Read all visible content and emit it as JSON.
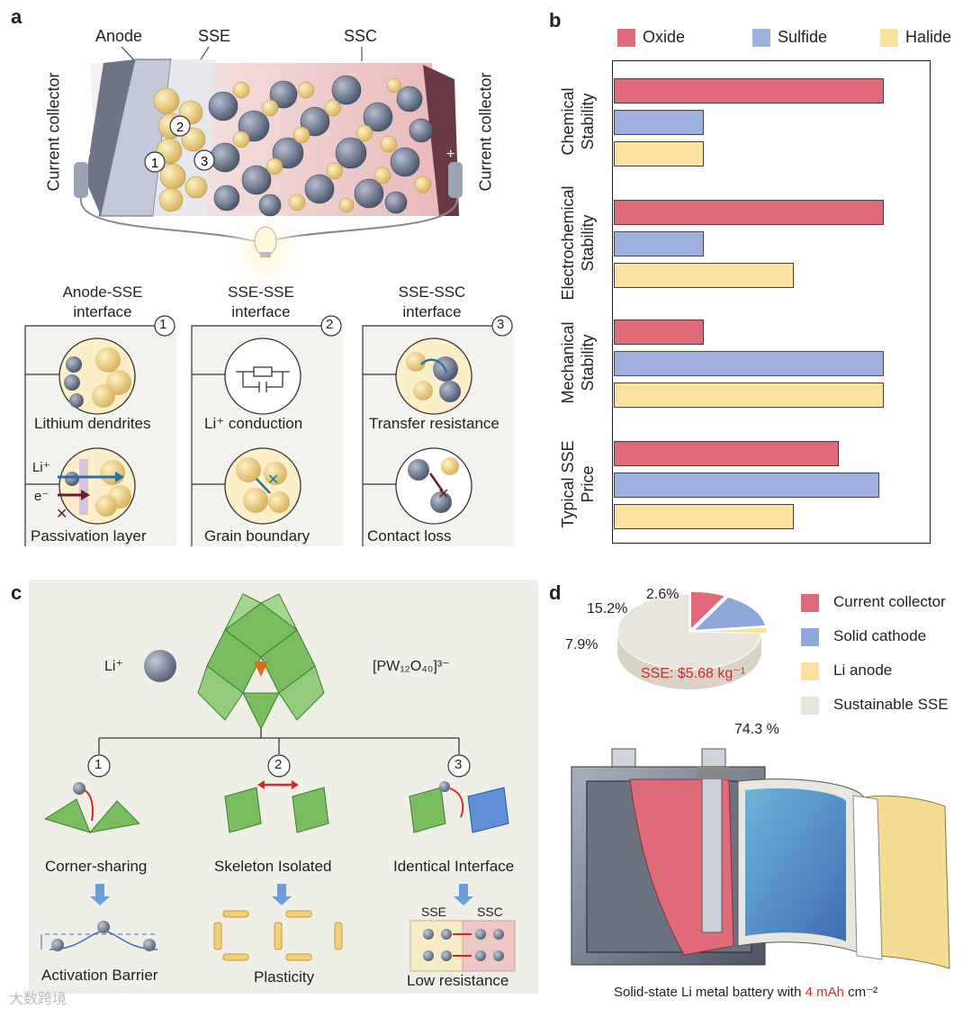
{
  "panel_a": {
    "letter": "a",
    "labels": {
      "anode": "Anode",
      "sse": "SSE",
      "ssc": "SSC",
      "cc_left": "Current collector",
      "cc_right": "Current collector",
      "minus": "−",
      "plus": "+"
    },
    "markers": [
      "1",
      "2",
      "3"
    ],
    "interfaces": [
      {
        "num": "1",
        "title_l1": "Anode-SSE",
        "title_l2": "interface",
        "top": "Lithium dendrites",
        "bottom": "Passivation layer",
        "li": "Li⁺",
        "e": "e⁻"
      },
      {
        "num": "2",
        "title_l1": "SSE-SSE",
        "title_l2": "interface",
        "top": "Li⁺ conduction",
        "bottom": "Grain boundary"
      },
      {
        "num": "3",
        "title_l1": "SSE-SSC",
        "title_l2": "interface",
        "top": "Transfer resistance",
        "bottom": "Contact loss"
      }
    ]
  },
  "panel_b": {
    "letter": "b"
  },
  "chart_data": {
    "type": "bar",
    "orientation": "horizontal",
    "legend_position": "top",
    "categories": [
      "Chemical Stability",
      "Electrochemical Stability",
      "Mechanical Stability",
      "Typical SSE Price"
    ],
    "category_lines": [
      [
        "Chemical",
        "Stability"
      ],
      [
        "Electrochemical",
        "Stability"
      ],
      [
        "Mechanical",
        "Stability"
      ],
      [
        "Typical SSE",
        "Price"
      ]
    ],
    "series": [
      {
        "name": "Oxide",
        "color": "#e06b78",
        "values": [
          3,
          3,
          1,
          2.5
        ]
      },
      {
        "name": "Sulfide",
        "color": "#9db0df",
        "values": [
          1,
          1,
          3,
          2.95
        ]
      },
      {
        "name": "Halide",
        "color": "#fbe19f",
        "values": [
          1,
          2,
          3,
          2
        ]
      }
    ],
    "xlim": [
      0,
      3.5
    ]
  },
  "panel_c": {
    "letter": "c",
    "li_label": "Li⁺",
    "pw_label": "[PW₁₂O₄₀]³⁻",
    "branches": [
      {
        "num": "1",
        "title": "Corner-sharing",
        "result": "Activation Barrier"
      },
      {
        "num": "2",
        "title": "Skeleton Isolated",
        "result": "Plasticity"
      },
      {
        "num": "3",
        "title": "Identical Interface",
        "result": "Low resistance",
        "sse": "SSE",
        "ssc": "SSC"
      }
    ]
  },
  "panel_d": {
    "letter": "d",
    "pie": {
      "slices": [
        {
          "name": "Current collector",
          "pct": 7.9,
          "label": "7.9%",
          "color": "#e06b78"
        },
        {
          "name": "Solid cathode",
          "pct": 15.2,
          "label": "15.2%",
          "color": "#8fa6da"
        },
        {
          "name": "Li anode",
          "pct": 2.6,
          "label": "2.6%",
          "color": "#fbe19f"
        },
        {
          "name": "Sustainable SSE",
          "pct": 74.3,
          "label": "74.3 %",
          "color": "#e9e5dc"
        }
      ],
      "center_label": "SSE: $5.68 kg⁻¹"
    },
    "caption_pre": "Solid-state Li metal battery with ",
    "caption_highlight": "4 mAh",
    "caption_post": " cm⁻²"
  },
  "watermark": "大数跨境"
}
